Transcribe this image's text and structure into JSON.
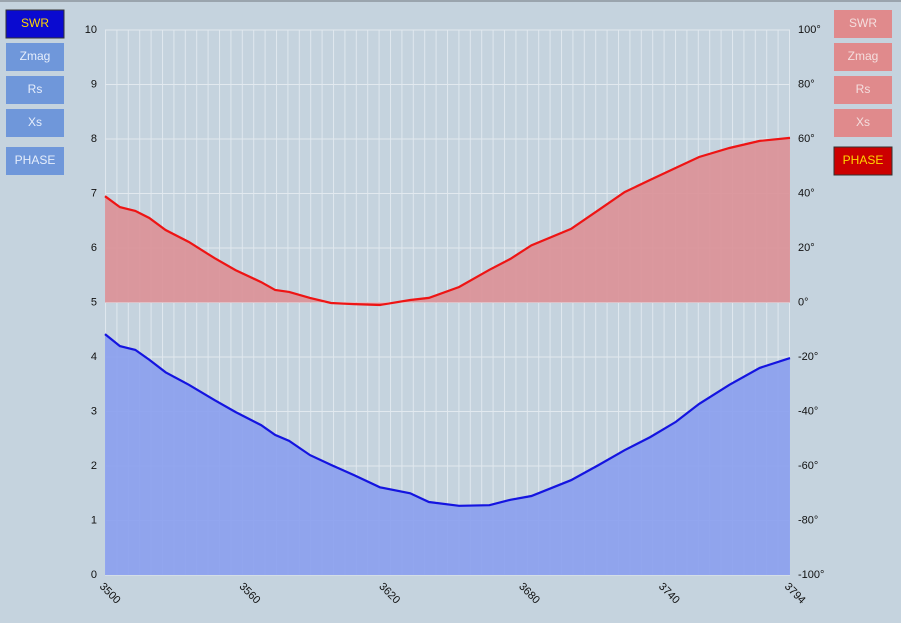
{
  "chart_data": {
    "type": "area",
    "x": [
      3500,
      3506.4,
      3513,
      3519,
      3526,
      3536,
      3547,
      3556,
      3567,
      3573,
      3579,
      3588,
      3597,
      3607,
      3618,
      3631,
      3639,
      3652,
      3665,
      3674,
      3683,
      3700,
      3712,
      3723,
      3734,
      3745,
      3755,
      3768,
      3781,
      3794
    ],
    "series": [
      {
        "color": "#1414e0",
        "fill": "#8a9eee",
        "values": [
          4.42,
          4.2,
          4.13,
          3.95,
          3.72,
          3.49,
          3.21,
          2.99,
          2.75,
          2.57,
          2.46,
          2.2,
          2.02,
          1.83,
          1.61,
          1.5,
          1.34,
          1.27,
          1.28,
          1.38,
          1.45,
          1.74,
          2.02,
          2.29,
          2.53,
          2.81,
          3.14,
          3.49,
          3.8,
          3.98
        ]
      },
      {
        "color": "#ee1414",
        "fill": "#dc9096",
        "axis": "y2",
        "values": [
          39,
          35,
          33.6,
          31,
          26.6,
          22.2,
          16.3,
          11.9,
          7.5,
          4.6,
          3.9,
          1.7,
          -0.2,
          -0.6,
          -0.9,
          0.9,
          1.7,
          5.7,
          12,
          16,
          21,
          27,
          34,
          40.5,
          45,
          49.4,
          53.4,
          56.7,
          59.3,
          60.4
        ]
      }
    ],
    "xlim": [
      3500,
      3794
    ],
    "xticks": [
      3500,
      3560,
      3620,
      3680,
      3740,
      3794
    ],
    "ylim": [
      0,
      10
    ],
    "yticks": [
      0,
      1,
      2,
      3,
      4,
      5,
      6,
      7,
      8,
      9,
      10
    ],
    "y2lim": [
      -100,
      100
    ],
    "y2ticks": [
      {
        "value": -100,
        "label": "-100°"
      },
      {
        "value": -80,
        "label": "-80°"
      },
      {
        "value": -60,
        "label": "-60°"
      },
      {
        "value": -40,
        "label": "-40°"
      },
      {
        "value": -20,
        "label": "-20°"
      },
      {
        "value": 0,
        "label": "0°"
      },
      {
        "value": 20,
        "label": "20°"
      },
      {
        "value": 40,
        "label": "40°"
      },
      {
        "value": 60,
        "label": "60°"
      },
      {
        "value": 80,
        "label": "80°"
      },
      {
        "value": 100,
        "label": "100°"
      }
    ],
    "grid": true
  },
  "buttons": {
    "left": [
      "SWR",
      "Zmag",
      "Rs",
      "Xs",
      "PHASE"
    ],
    "left_active": 0,
    "right": [
      "SWR",
      "Zmag",
      "Rs",
      "Xs",
      "PHASE"
    ],
    "right_active": 4
  }
}
